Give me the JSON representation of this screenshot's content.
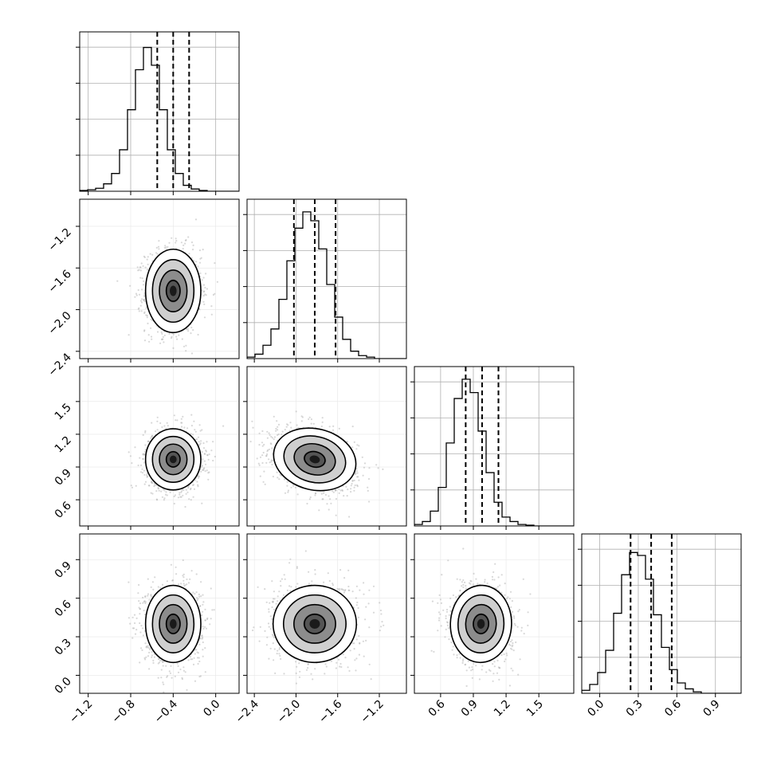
{
  "chart_data": {
    "type": "corner",
    "parameters": [
      {
        "ticks": [
          -1.2,
          -0.8,
          -0.4,
          0.0
        ],
        "tick_labels": [
          "−1.2",
          "−0.8",
          "−0.4",
          "0.0"
        ],
        "range": [
          -1.28,
          0.22
        ],
        "quantiles": [
          -0.55,
          -0.4,
          -0.25
        ]
      },
      {
        "ticks": [
          -2.4,
          -2.0,
          -1.6,
          -1.2
        ],
        "tick_labels": [
          "−2.4",
          "−2.0",
          "−1.6",
          "−1.2"
        ],
        "range": [
          -2.47,
          -0.94
        ],
        "quantiles": [
          -2.02,
          -1.82,
          -1.62
        ]
      },
      {
        "ticks": [
          0.6,
          0.9,
          1.2,
          1.5
        ],
        "tick_labels": [
          "0.6",
          "0.9",
          "1.2",
          "1.5"
        ],
        "range": [
          0.36,
          1.82
        ],
        "quantiles": [
          0.83,
          0.98,
          1.13
        ]
      },
      {
        "ticks": [
          0.0,
          0.3,
          0.6,
          0.9
        ],
        "tick_labels": [
          "0.0",
          "0.3",
          "0.6",
          "0.9"
        ],
        "range": [
          -0.14,
          1.1
        ],
        "quantiles": [
          0.24,
          0.4,
          0.56
        ]
      }
    ],
    "histograms": [
      [
        0.005,
        0.01,
        0.02,
        0.05,
        0.12,
        0.28,
        0.55,
        0.82,
        0.97,
        0.85,
        0.55,
        0.28,
        0.12,
        0.04,
        0.015,
        0.005,
        0,
        0,
        0,
        0
      ],
      [
        0.01,
        0.03,
        0.09,
        0.2,
        0.4,
        0.66,
        0.88,
        0.99,
        0.93,
        0.74,
        0.5,
        0.28,
        0.13,
        0.05,
        0.02,
        0.01,
        0,
        0,
        0,
        0
      ],
      [
        0.01,
        0.03,
        0.1,
        0.26,
        0.56,
        0.86,
        0.99,
        0.9,
        0.64,
        0.36,
        0.16,
        0.06,
        0.03,
        0.01,
        0.005,
        0,
        0,
        0,
        0,
        0
      ],
      [
        0.02,
        0.06,
        0.14,
        0.29,
        0.54,
        0.8,
        0.95,
        0.93,
        0.77,
        0.53,
        0.31,
        0.16,
        0.07,
        0.03,
        0.01,
        0,
        0,
        0,
        0,
        0
      ]
    ],
    "pairs": [
      {
        "row": 1,
        "col": 0,
        "mean": [
          -0.4,
          -1.82
        ],
        "sd": [
          0.13,
          0.2
        ],
        "corr": 0.0
      },
      {
        "row": 2,
        "col": 0,
        "mean": [
          -0.4,
          0.97
        ],
        "sd": [
          0.13,
          0.14
        ],
        "corr": 0.0
      },
      {
        "row": 2,
        "col": 1,
        "mean": [
          -1.82,
          0.97
        ],
        "sd": [
          0.2,
          0.14
        ],
        "corr": -0.3
      },
      {
        "row": 3,
        "col": 0,
        "mean": [
          -0.4,
          0.4
        ],
        "sd": [
          0.13,
          0.15
        ],
        "corr": 0.0
      },
      {
        "row": 3,
        "col": 1,
        "mean": [
          -1.82,
          0.4
        ],
        "sd": [
          0.2,
          0.15
        ],
        "corr": 0.0
      },
      {
        "row": 3,
        "col": 2,
        "mean": [
          0.97,
          0.4
        ],
        "sd": [
          0.14,
          0.15
        ],
        "corr": -0.05
      }
    ],
    "grid": true,
    "title": "",
    "labels": [
      "",
      "",
      "",
      ""
    ]
  }
}
